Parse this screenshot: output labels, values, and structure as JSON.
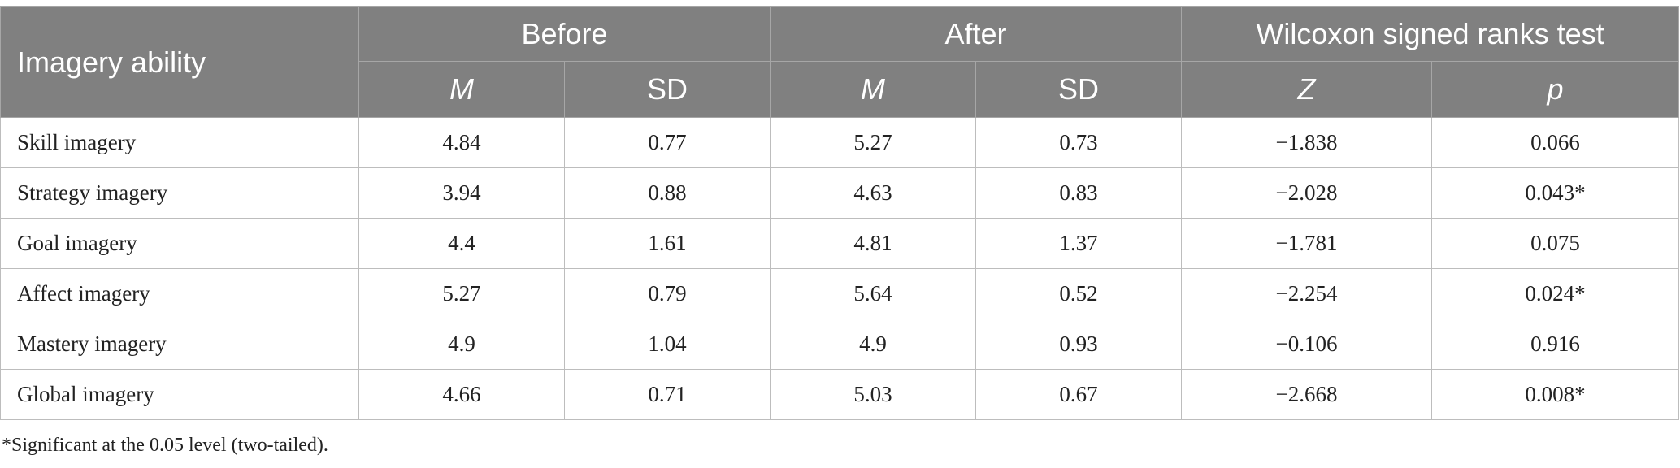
{
  "header": {
    "row_label": "Imagery ability",
    "groups": [
      "Before",
      "After",
      "Wilcoxon signed ranks test"
    ],
    "subheaders": [
      "M",
      "SD",
      "M",
      "SD",
      "Z",
      "p"
    ]
  },
  "rows": [
    {
      "label": "Skill imagery",
      "cells": [
        "4.84",
        "0.77",
        "5.27",
        "0.73",
        "−1.838",
        "0.066"
      ]
    },
    {
      "label": "Strategy imagery",
      "cells": [
        "3.94",
        "0.88",
        "4.63",
        "0.83",
        "−2.028",
        "0.043*"
      ]
    },
    {
      "label": "Goal imagery",
      "cells": [
        "4.4",
        "1.61",
        "4.81",
        "1.37",
        "−1.781",
        "0.075"
      ]
    },
    {
      "label": "Affect imagery",
      "cells": [
        "5.27",
        "0.79",
        "5.64",
        "0.52",
        "−2.254",
        "0.024*"
      ]
    },
    {
      "label": "Mastery imagery",
      "cells": [
        "4.9",
        "1.04",
        "4.9",
        "0.93",
        "−0.106",
        "0.916"
      ]
    },
    {
      "label": "Global imagery",
      "cells": [
        "4.66",
        "0.71",
        "5.03",
        "0.67",
        "−2.668",
        "0.008*"
      ]
    }
  ],
  "footnote": "*Significant at the 0.05 level (two-tailed).",
  "colors": {
    "header_bg": "#808080",
    "header_text": "#ffffff",
    "grid": "#bdbdbd"
  }
}
